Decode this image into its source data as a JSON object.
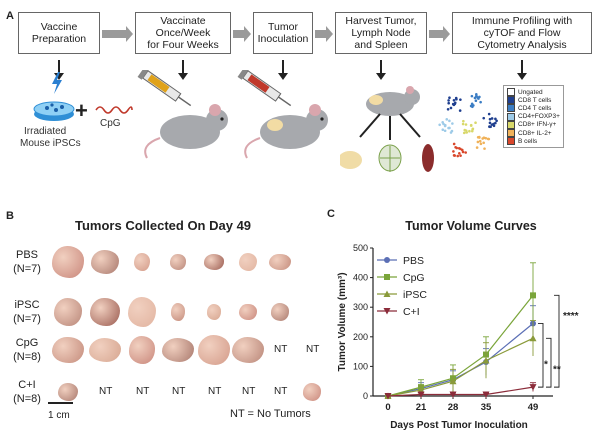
{
  "panelA": {
    "letter": "A",
    "steps": [
      {
        "lines": [
          "Vaccine",
          "Preparation"
        ]
      },
      {
        "lines": [
          "Vaccinate",
          "Once/Week",
          "for Four Weeks"
        ]
      },
      {
        "lines": [
          "Tumor",
          "Inoculation"
        ]
      },
      {
        "lines": [
          "Harvest Tumor,",
          "Lymph Node",
          "and Spleen"
        ]
      },
      {
        "lines": [
          "Immune Profiling with",
          "cyTOF and Flow",
          "Cytometry Analysis"
        ]
      }
    ],
    "vaccine_labels": {
      "cells": [
        "Irradiated",
        "Mouse iPSCs"
      ],
      "plus": "+",
      "cpg": "CpG"
    },
    "legend": [
      {
        "label": "Ungated",
        "color": "#ffffff"
      },
      {
        "label": "CD8 T cells",
        "color": "#1f3f8f"
      },
      {
        "label": "CD4 T cells",
        "color": "#3b7dc4"
      },
      {
        "label": "CD4+FOXP3+",
        "color": "#9ecbe8"
      },
      {
        "label": "CD8+ IFN-γ+",
        "color": "#d8d86a"
      },
      {
        "label": "CD8+ IL-2+",
        "color": "#f0b25a"
      },
      {
        "label": "B cells",
        "color": "#d9472b"
      }
    ]
  },
  "panelB": {
    "letter": "B",
    "title": "Tumors Collected On Day 49",
    "rows": [
      {
        "label": [
          "PBS",
          "(N=7)"
        ],
        "nt_count": 0
      },
      {
        "label": [
          "iPSC",
          "(N=7)"
        ],
        "nt_count": 0
      },
      {
        "label": [
          "CpG",
          "(N=8)"
        ],
        "nt_count": 2
      },
      {
        "label": [
          "C+I",
          "(N=8)"
        ],
        "nt_count": 6
      }
    ],
    "nt_text": "NT",
    "scale_label": "1 cm",
    "footnote": "NT = No Tumors"
  },
  "panelC": {
    "letter": "C",
    "chart_data": {
      "type": "line",
      "title": "Tumor Volume Curves",
      "xlabel": "Days Post Tumor Inoculation",
      "ylabel": "Tumor Volume (mm³)",
      "x": [
        0,
        21,
        28,
        35,
        49
      ],
      "ylim": [
        0,
        500
      ],
      "yticks": [
        0,
        100,
        200,
        300,
        400,
        500
      ],
      "series": [
        {
          "name": "PBS",
          "color": "#5b6fb5",
          "marker": "circle",
          "values": [
            0,
            25,
            55,
            115,
            245
          ],
          "errors": [
            0,
            20,
            30,
            45,
            60
          ]
        },
        {
          "name": "CpG",
          "color": "#7aa53a",
          "marker": "square",
          "values": [
            0,
            30,
            60,
            140,
            340
          ],
          "errors": [
            0,
            25,
            45,
            60,
            110
          ]
        },
        {
          "name": "iPSC",
          "color": "#8a9a3a",
          "marker": "triangle",
          "values": [
            0,
            20,
            50,
            120,
            195
          ],
          "errors": [
            0,
            15,
            40,
            60,
            60
          ]
        },
        {
          "name": "C+I",
          "color": "#8b2c3a",
          "marker": "triangle-down",
          "values": [
            0,
            5,
            5,
            5,
            30
          ],
          "errors": [
            0,
            5,
            5,
            5,
            15
          ]
        }
      ],
      "significance": [
        "****",
        "*",
        "**"
      ],
      "legend_position": "top-left"
    }
  }
}
